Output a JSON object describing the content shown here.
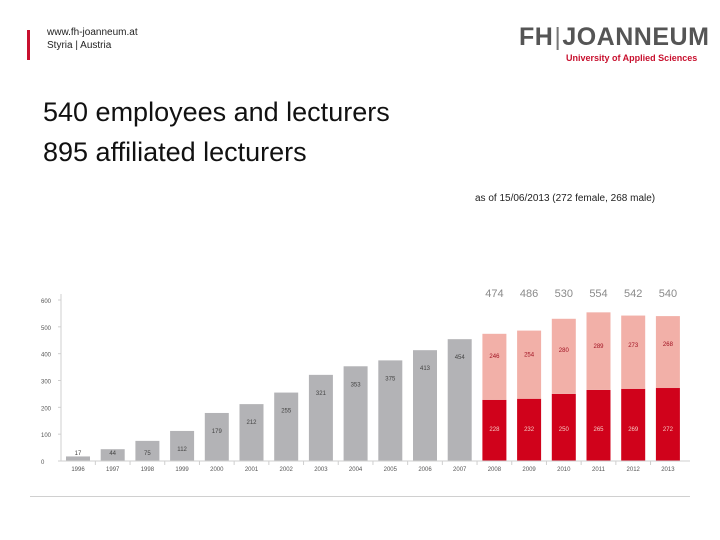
{
  "header": {
    "website": "www.fh-joanneum.at",
    "location": "Styria | Austria",
    "logo": {
      "left": "FH",
      "separator": "|",
      "right": "JOANNEUM",
      "tagline": "University of Applied Sciences"
    }
  },
  "headline": {
    "line1": "540 employees and lecturers",
    "line2": "895 affiliated lecturers"
  },
  "note": "as of 15/06/2013 (272 female, 268 male)",
  "colors": {
    "accent": "#c8102e",
    "gray_bar": "#b3b3b6",
    "female": "#d0021b",
    "male": "#f2b0a8",
    "total_label_gray": "#8a8a8a"
  },
  "chart_data": {
    "type": "bar",
    "stacked": true,
    "categories": [
      "1996",
      "1997",
      "1998",
      "1999",
      "2000",
      "2001",
      "2002",
      "2003",
      "2004",
      "2005",
      "2006",
      "2007",
      "2008",
      "2009",
      "2010",
      "2011",
      "2012",
      "2013"
    ],
    "series": [
      {
        "values": [
          17,
          44,
          75,
          112,
          179,
          212,
          255,
          321,
          353,
          375,
          413,
          454,
          null,
          null,
          null,
          null,
          null,
          null
        ]
      },
      {
        "values": [
          null,
          null,
          null,
          null,
          null,
          null,
          null,
          null,
          null,
          null,
          null,
          null,
          228,
          232,
          250,
          265,
          269,
          272
        ]
      },
      {
        "values": [
          null,
          null,
          null,
          null,
          null,
          null,
          null,
          null,
          null,
          null,
          null,
          null,
          246,
          254,
          280,
          289,
          273,
          268
        ]
      }
    ],
    "totals": [
      null,
      null,
      null,
      null,
      null,
      null,
      null,
      null,
      null,
      null,
      null,
      null,
      474,
      486,
      530,
      554,
      542,
      540
    ],
    "yticks": [
      0,
      100,
      200,
      300,
      400,
      500,
      600
    ],
    "ylim": [
      0,
      600
    ],
    "grid": false,
    "legend": "none"
  }
}
